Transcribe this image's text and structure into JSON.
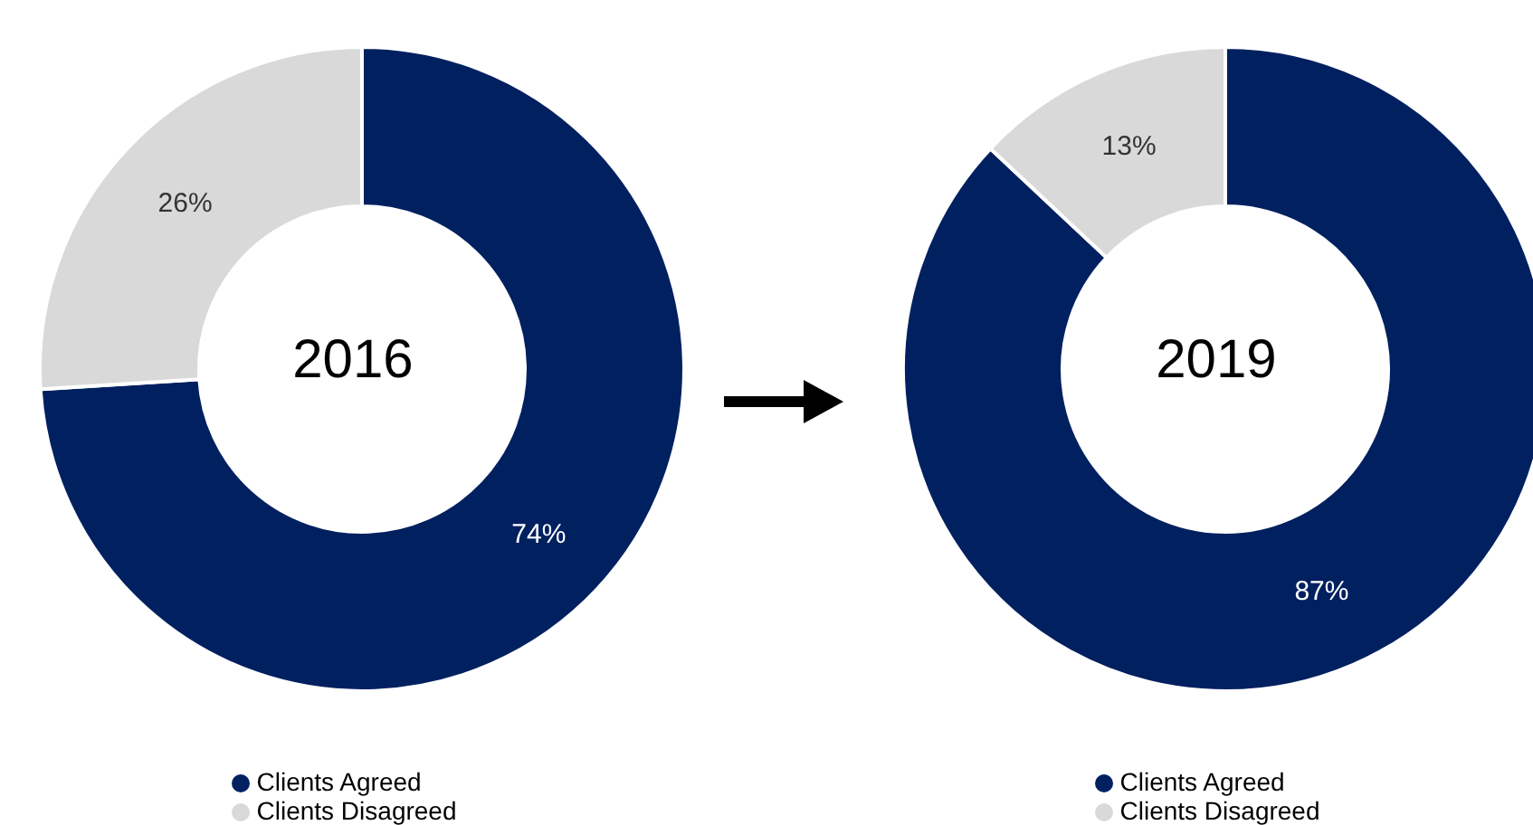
{
  "chart_data": [
    {
      "type": "donut",
      "title": "2016",
      "categories": [
        "Clients Agreed",
        "Clients Disagreed"
      ],
      "values": [
        74,
        26
      ],
      "colors": [
        "#002060",
        "#d9d9d9"
      ],
      "value_labels": [
        "74%",
        "26%"
      ],
      "legend": "bottom"
    },
    {
      "type": "donut",
      "title": "2019",
      "categories": [
        "Clients Agreed",
        "Clients Disagreed"
      ],
      "values": [
        87,
        13
      ],
      "colors": [
        "#002060",
        "#d9d9d9"
      ],
      "value_labels": [
        "87%",
        "13%"
      ],
      "legend": "bottom"
    }
  ]
}
